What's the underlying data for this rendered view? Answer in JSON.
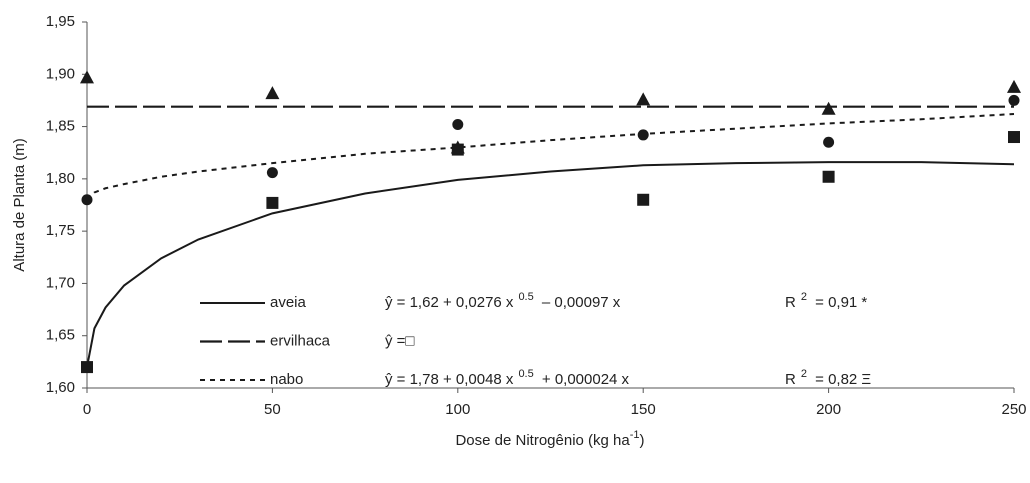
{
  "chart_data": {
    "type": "scatter",
    "y_label": "Altura de Planta (m)",
    "x_label": [
      "Dose de Nitrogênio (kg ha",
      "-1",
      ")"
    ],
    "xlim": [
      0,
      250
    ],
    "xticks": [
      0,
      50,
      100,
      150,
      200,
      250
    ],
    "ylim": [
      1.6,
      1.95
    ],
    "yticks": [
      {
        "value": 1.6,
        "label": "1,60"
      },
      {
        "value": 1.65,
        "label": "1,65"
      },
      {
        "value": 1.7,
        "label": "1,70"
      },
      {
        "value": 1.75,
        "label": "1,75"
      },
      {
        "value": 1.8,
        "label": "1,80"
      },
      {
        "value": 1.85,
        "label": "1,85"
      },
      {
        "value": 1.9,
        "label": "1,90"
      },
      {
        "value": 1.95,
        "label": "1,95"
      }
    ],
    "x": [
      0,
      50,
      100,
      150,
      200,
      250
    ],
    "fit_x": [
      0,
      2,
      5,
      10,
      20,
      30,
      50,
      75,
      100,
      125,
      150,
      175,
      200,
      225,
      250
    ],
    "series": [
      {
        "name": "aveia",
        "color": "#1a1a1a",
        "marker": "square",
        "line": "solid",
        "values": [
          1.62,
          1.777,
          1.828,
          1.78,
          1.802,
          1.84
        ],
        "fit_values": [
          1.62,
          1.657,
          1.677,
          1.698,
          1.724,
          1.742,
          1.767,
          1.786,
          1.799,
          1.807,
          1.813,
          1.815,
          1.816,
          1.816,
          1.814
        ],
        "equation": [
          "ŷ = 1,62 + 0,0276 x",
          "0.5",
          " – 0,00097 x",
          "R",
          "2",
          " = 0,91 *"
        ]
      },
      {
        "name": "ervilhaca",
        "color": "#1a1a1a",
        "marker": "triangle",
        "line": "longdash",
        "values": [
          1.897,
          1.882,
          1.83,
          1.876,
          1.867,
          1.888
        ],
        "fit_values": [
          1.869,
          1.869,
          1.869,
          1.869,
          1.869,
          1.869,
          1.869,
          1.869,
          1.869,
          1.869,
          1.869,
          1.869,
          1.869,
          1.869,
          1.869
        ],
        "equation": [
          "ŷ =□"
        ]
      },
      {
        "name": "nabo",
        "color": "#1a1a1a",
        "marker": "circle",
        "line": "shortdash",
        "values": [
          1.78,
          1.806,
          1.852,
          1.842,
          1.835,
          1.875
        ],
        "fit_values": [
          1.78,
          1.787,
          1.791,
          1.795,
          1.802,
          1.807,
          1.815,
          1.824,
          1.83,
          1.837,
          1.843,
          1.848,
          1.853,
          1.857,
          1.862
        ],
        "equation": [
          "ŷ = 1,78 + 0,0048 x",
          "0.5",
          " + 0,000024 x",
          "R",
          "2",
          " = 0,82 Ξ"
        ]
      }
    ]
  }
}
